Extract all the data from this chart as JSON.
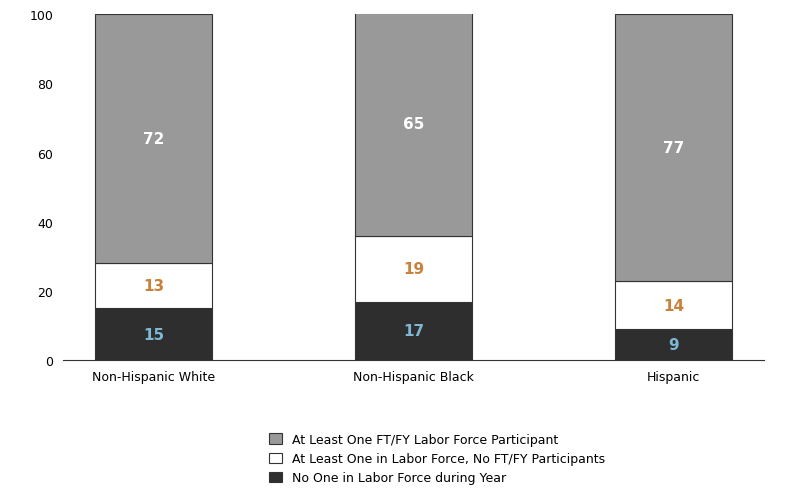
{
  "categories": [
    "Non-Hispanic White",
    "Non-Hispanic Black",
    "Hispanic"
  ],
  "series": {
    "no_one": [
      15,
      17,
      9
    ],
    "at_least_one_no_ftfy": [
      13,
      19,
      14
    ],
    "at_least_one_ftfy": [
      72,
      65,
      77
    ]
  },
  "colors": {
    "no_one": "#2e2e2e",
    "at_least_one_no_ftfy": "#ffffff",
    "at_least_one_ftfy": "#999999"
  },
  "edge_color": "#333333",
  "legend_labels": [
    "At Least One FT/FY Labor Force Participant",
    "At Least One in Labor Force, No FT/FY Participants",
    "No One in Labor Force during Year"
  ],
  "ylim": [
    0,
    100
  ],
  "yticks": [
    0,
    20,
    40,
    60,
    80,
    100
  ],
  "bar_width": 0.45,
  "label_fontsize": 11,
  "tick_fontsize": 9,
  "legend_fontsize": 9,
  "background_color": "#ffffff",
  "text_color_white": "#ffffff",
  "text_color_lightblue": "#7eb8d4",
  "text_color_orange": "#c8813a",
  "text_color_dark": "#333333"
}
